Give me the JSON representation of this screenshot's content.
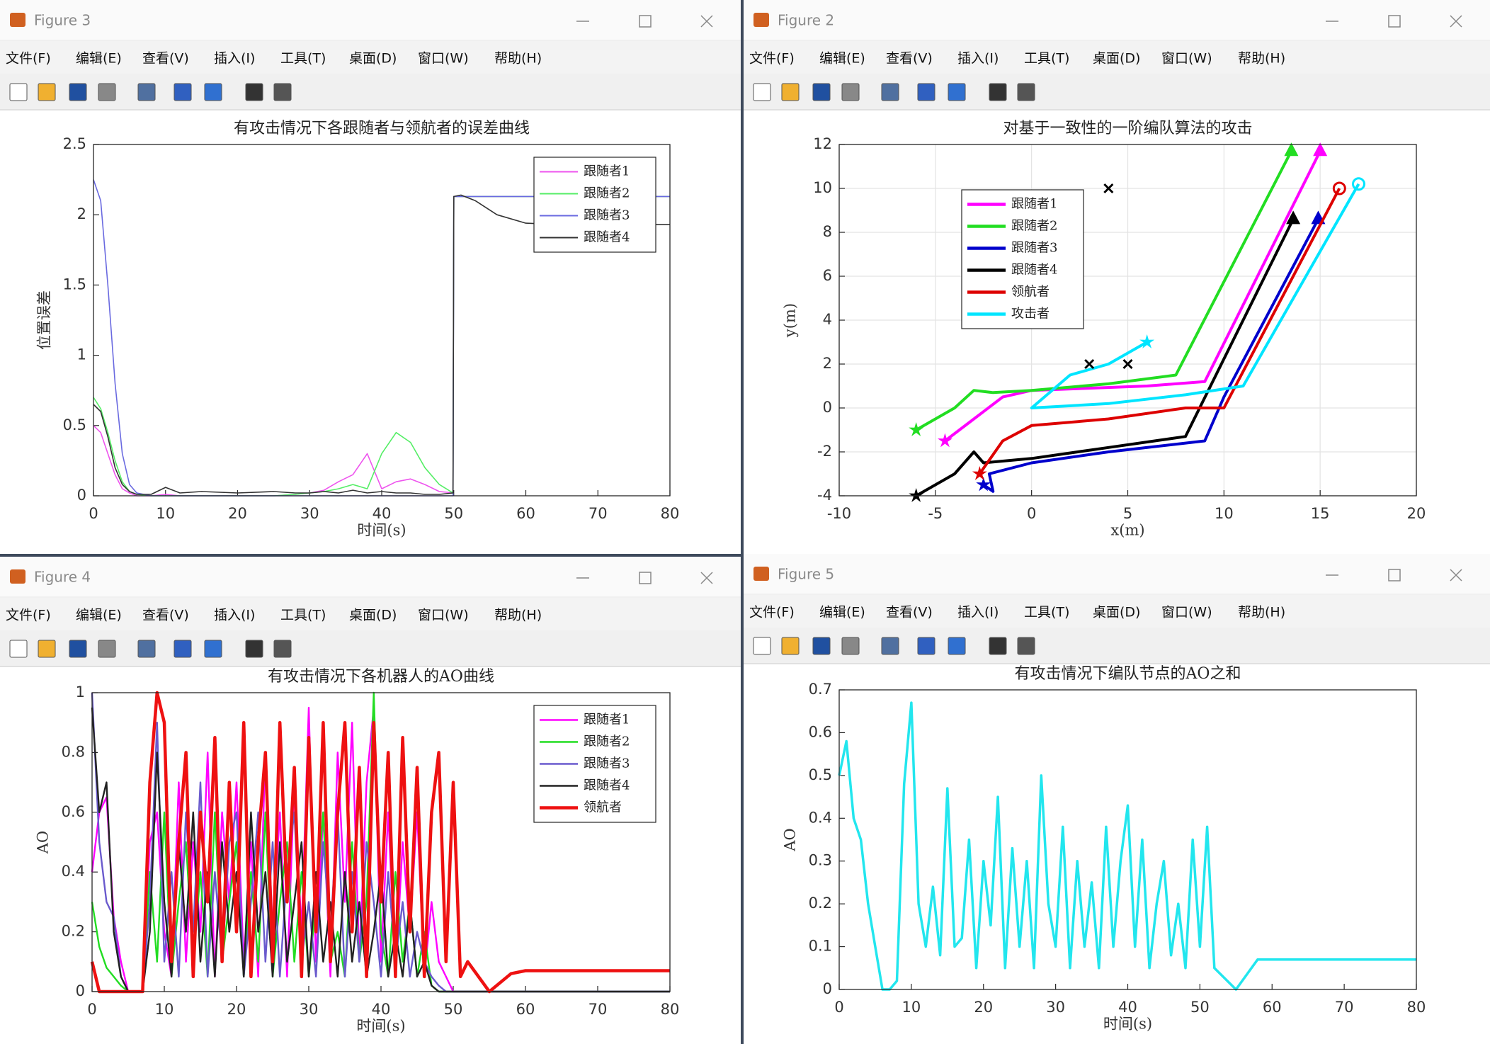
{
  "windows": [
    {
      "title": "Figure 3"
    },
    {
      "title": "Figure 2"
    },
    {
      "title": "Figure 4"
    },
    {
      "title": "Figure 5"
    }
  ],
  "menu": [
    "文件(F)",
    "编辑(E)",
    "查看(V)",
    "插入(I)",
    "工具(T)",
    "桌面(D)",
    "窗口(W)",
    "帮助(H)"
  ],
  "chart_data": [
    {
      "type": "line",
      "title": "有攻击情况下各跟随者与领航者的误差曲线",
      "xlabel": "时间(s)",
      "ylabel": "位置误差",
      "x": [
        0,
        1,
        2,
        3,
        4,
        5,
        6,
        8,
        10,
        12,
        15,
        20,
        25,
        28,
        30,
        32,
        34,
        36,
        38,
        40,
        42,
        44,
        46,
        48,
        49.9,
        50,
        51,
        53,
        56,
        60,
        65,
        70,
        80
      ],
      "series": [
        {
          "name": "跟随者1",
          "color": "#ee55ee",
          "values": [
            0.5,
            0.45,
            0.3,
            0.15,
            0.05,
            0.02,
            0,
            0,
            0.01,
            0,
            0,
            0,
            0,
            0.01,
            0.02,
            0.04,
            0.1,
            0.15,
            0.3,
            0.05,
            0.1,
            0.12,
            0.08,
            0.03,
            0.02,
            2.13,
            2.13,
            2.13,
            2.13,
            2.13,
            2.13,
            2.13,
            2.13
          ]
        },
        {
          "name": "跟随者2",
          "color": "#55ee66",
          "values": [
            0.7,
            0.62,
            0.45,
            0.25,
            0.1,
            0.03,
            0.01,
            0,
            0,
            0,
            0,
            0,
            0,
            0.01,
            0.02,
            0.03,
            0.05,
            0.08,
            0.05,
            0.3,
            0.45,
            0.38,
            0.2,
            0.08,
            0.02,
            2.13,
            2.13,
            2.13,
            2.13,
            2.13,
            2.13,
            2.13,
            2.13
          ]
        },
        {
          "name": "跟随者3",
          "color": "#6a6ae0",
          "values": [
            2.25,
            2.1,
            1.5,
            0.8,
            0.3,
            0.08,
            0.02,
            0,
            0,
            0,
            0,
            0,
            0,
            0,
            0,
            0,
            0,
            0,
            0,
            0,
            0,
            0,
            0,
            0,
            0,
            2.13,
            2.13,
            2.13,
            2.13,
            2.13,
            2.13,
            2.13,
            2.13
          ]
        },
        {
          "name": "跟随者4",
          "color": "#333333",
          "values": [
            0.65,
            0.6,
            0.42,
            0.2,
            0.08,
            0.03,
            0.01,
            0.01,
            0.06,
            0.02,
            0.03,
            0.02,
            0.03,
            0.02,
            0.02,
            0.03,
            0.02,
            0.04,
            0.02,
            0.03,
            0.02,
            0.02,
            0.01,
            0.01,
            0.02,
            2.13,
            2.14,
            2.1,
            2.0,
            1.94,
            1.93,
            1.93,
            1.93
          ]
        }
      ],
      "xlim": [
        0,
        80
      ],
      "xticks": [
        0,
        10,
        20,
        30,
        40,
        50,
        60,
        70,
        80
      ],
      "ylim": [
        0,
        2.5
      ],
      "yticks": [
        0,
        0.5,
        1,
        1.5,
        2,
        2.5
      ],
      "grid": false,
      "legend": "northeast"
    },
    {
      "type": "line",
      "title": "对基于一致性的一阶编队算法的攻击",
      "xlabel": "x(m)",
      "ylabel": "y(m)",
      "series": [
        {
          "name": "跟随者1",
          "color": "#ff00ff",
          "x": [
            -4.5,
            -3,
            -1.5,
            0,
            3,
            6,
            9,
            15
          ],
          "values": [
            -1.5,
            -0.5,
            0.5,
            0.8,
            0.9,
            1.0,
            1.2,
            11.7
          ],
          "start_marker": "star",
          "end_marker": "triangle"
        },
        {
          "name": "跟随者2",
          "color": "#22dd22",
          "x": [
            -6,
            -4,
            -3,
            -2,
            0,
            4,
            7.5,
            13.5
          ],
          "values": [
            -1,
            0,
            0.8,
            0.7,
            0.8,
            1.1,
            1.5,
            11.7
          ],
          "start_marker": "star",
          "end_marker": "triangle"
        },
        {
          "name": "跟随者3",
          "color": "#0000cc",
          "x": [
            -2.5,
            -2,
            -2.2,
            0,
            4,
            9,
            10,
            14.9
          ],
          "values": [
            -3.5,
            -3.8,
            -3,
            -2.5,
            -2,
            -1.5,
            0.5,
            8.6
          ],
          "start_marker": "star",
          "end_marker": "triangle"
        },
        {
          "name": "跟随者4",
          "color": "#000000",
          "x": [
            -6,
            -4,
            -3,
            -2.5,
            0,
            4,
            8,
            13.6
          ],
          "values": [
            -4,
            -3,
            -2,
            -2.5,
            -2.3,
            -1.8,
            -1.3,
            8.6
          ],
          "start_marker": "star",
          "end_marker": "triangle"
        },
        {
          "name": "领航者",
          "color": "#dd0000",
          "x": [
            -2.7,
            -1.5,
            0,
            4,
            8,
            10,
            16
          ],
          "values": [
            -3,
            -1.5,
            -0.8,
            -0.5,
            0,
            0,
            10
          ],
          "start_marker": "star",
          "end_marker": "circle"
        },
        {
          "name": "攻击者",
          "color": "#00e5ff",
          "x": [
            6,
            4,
            2,
            0,
            4,
            8,
            11,
            17
          ],
          "values": [
            3,
            2,
            1.5,
            0,
            0.2,
            0.6,
            1,
            10.2
          ],
          "start_marker": "star",
          "end_marker": "circle"
        }
      ],
      "points": {
        "x": [
          3,
          4,
          5
        ],
        "values": [
          2,
          10,
          2
        ],
        "color": "#000000"
      },
      "xlim": [
        -10,
        20
      ],
      "xticks": [
        -10,
        -5,
        0,
        5,
        10,
        15,
        20
      ],
      "ylim": [
        -4,
        12
      ],
      "yticks": [
        -4,
        -2,
        0,
        2,
        4,
        6,
        8,
        10,
        12
      ],
      "grid": true,
      "legend": "northwest"
    },
    {
      "type": "line",
      "title": "有攻击情况下各机器人的AO曲线",
      "xlabel": "时间(s)",
      "ylabel": "AO",
      "x": [
        0,
        1,
        2,
        3,
        4,
        5,
        6,
        7,
        8,
        9,
        10,
        11,
        12,
        13,
        14,
        15,
        16,
        17,
        18,
        19,
        20,
        21,
        22,
        23,
        24,
        25,
        26,
        27,
        28,
        29,
        30,
        31,
        32,
        33,
        34,
        35,
        36,
        37,
        38,
        39,
        40,
        41,
        42,
        43,
        44,
        45,
        46,
        47,
        48,
        49,
        50,
        51,
        52,
        55,
        58,
        60,
        70,
        80
      ],
      "series": [
        {
          "name": "跟随者1",
          "color": "#ff00ff",
          "values": [
            0.4,
            0.6,
            0.65,
            0.25,
            0.1,
            0,
            0,
            0,
            0.5,
            0.6,
            0.2,
            0.05,
            0.7,
            0.1,
            0.5,
            0.2,
            0.8,
            0.05,
            0.6,
            0.3,
            0.7,
            0.1,
            0.5,
            0.05,
            0.8,
            0.2,
            0.6,
            0.05,
            0.7,
            0.2,
            0.95,
            0.1,
            0.6,
            0.05,
            0.8,
            0.3,
            0.9,
            0.1,
            0.7,
            0.95,
            0.1,
            0.6,
            0.05,
            0.5,
            0.2,
            0.6,
            0.05,
            0.3,
            0.1,
            0.05,
            0,
            0,
            0,
            0,
            0,
            0,
            0,
            0
          ]
        },
        {
          "name": "跟随者2",
          "color": "#22dd22",
          "values": [
            0.3,
            0.15,
            0.08,
            0.05,
            0.02,
            0,
            0,
            0,
            0.4,
            0.1,
            0.6,
            0.05,
            0.3,
            0.5,
            0.1,
            0.4,
            0.05,
            0.6,
            0.1,
            0.3,
            0.5,
            0.05,
            0.4,
            0.1,
            0.6,
            0.05,
            0.3,
            0.5,
            0.1,
            0.4,
            0.05,
            0.3,
            0.6,
            0.1,
            0.2,
            0.05,
            0.5,
            0.1,
            0.3,
            1,
            0.2,
            0.05,
            0.4,
            0.1,
            0.3,
            0.05,
            0.2,
            0.02,
            0,
            0,
            0,
            0,
            0,
            0,
            0,
            0,
            0,
            0
          ]
        },
        {
          "name": "跟随者3",
          "color": "#6a5acd",
          "values": [
            1,
            0.5,
            0.3,
            0.25,
            0.05,
            0,
            0,
            0,
            0.3,
            0.9,
            0.1,
            0.4,
            0.05,
            0.6,
            0.2,
            0.7,
            0.05,
            0.4,
            0.1,
            0.5,
            0.6,
            0.05,
            0.3,
            0.6,
            0.1,
            0.5,
            0.05,
            0.4,
            0.6,
            0.1,
            0.3,
            0.05,
            0.5,
            0.2,
            0.6,
            0.05,
            0.4,
            0.1,
            0.5,
            0.3,
            0.05,
            0.4,
            0.1,
            0.3,
            0.05,
            0.2,
            0.1,
            0.05,
            0.02,
            0,
            0,
            0,
            0,
            0,
            0,
            0,
            0,
            0
          ]
        },
        {
          "name": "跟随者4",
          "color": "#222222",
          "values": [
            0.95,
            0.6,
            0.7,
            0.2,
            0.05,
            0,
            0,
            0,
            0.2,
            0.8,
            0.3,
            0.05,
            0.5,
            0.2,
            0.6,
            0.1,
            0.4,
            0.05,
            0.5,
            0.2,
            0.4,
            0.05,
            0.6,
            0.2,
            0.4,
            0.05,
            0.5,
            0.1,
            0.3,
            0.5,
            0.05,
            0.4,
            0.1,
            0.3,
            0.05,
            0.4,
            0.1,
            0.3,
            0.05,
            0.2,
            0.4,
            0.05,
            0.2,
            0.05,
            0.3,
            0.05,
            0.1,
            0.02,
            0,
            0,
            0,
            0,
            0,
            0,
            0,
            0,
            0,
            0
          ]
        },
        {
          "name": "领航者",
          "color": "#ee1111",
          "values": [
            0.1,
            0,
            0,
            0,
            0,
            0,
            0,
            0,
            0.7,
            1,
            0.9,
            0.1,
            0.5,
            0.8,
            0.05,
            0.6,
            0.3,
            0.85,
            0.1,
            0.7,
            0.2,
            0.9,
            0.05,
            0.5,
            0.8,
            0.1,
            0.9,
            0.3,
            0.75,
            0.05,
            0.85,
            0.2,
            0.9,
            0.1,
            0.6,
            0.9,
            0.2,
            0.75,
            0.05,
            0.9,
            0.3,
            0.8,
            0.05,
            0.85,
            0.2,
            0.75,
            0.05,
            0.6,
            0.8,
            0.1,
            0.7,
            0.05,
            0.1,
            0,
            0.06,
            0.07,
            0.07,
            0.07
          ]
        }
      ],
      "xlim": [
        0,
        80
      ],
      "xticks": [
        0,
        10,
        20,
        30,
        40,
        50,
        60,
        70,
        80
      ],
      "ylim": [
        0,
        1
      ],
      "yticks": [
        0,
        0.2,
        0.4,
        0.6,
        0.8,
        1
      ],
      "grid": false,
      "legend": "northeast"
    },
    {
      "type": "line",
      "title": "有攻击情况下编队节点的AO之和",
      "xlabel": "时间(s)",
      "ylabel": "AO",
      "x": [
        0,
        1,
        2,
        3,
        4,
        5,
        6,
        7,
        8,
        9,
        10,
        11,
        12,
        13,
        14,
        15,
        16,
        17,
        18,
        19,
        20,
        21,
        22,
        23,
        24,
        25,
        26,
        27,
        28,
        29,
        30,
        31,
        32,
        33,
        34,
        35,
        36,
        37,
        38,
        39,
        40,
        41,
        42,
        43,
        44,
        45,
        46,
        47,
        48,
        49,
        50,
        51,
        52,
        55,
        58,
        60,
        70,
        80
      ],
      "color": "#22e6ee",
      "values": [
        0.5,
        0.58,
        0.4,
        0.35,
        0.2,
        0.1,
        0,
        0,
        0.02,
        0.48,
        0.67,
        0.2,
        0.1,
        0.24,
        0.08,
        0.47,
        0.1,
        0.12,
        0.35,
        0.05,
        0.3,
        0.15,
        0.45,
        0.05,
        0.33,
        0.1,
        0.3,
        0.05,
        0.5,
        0.2,
        0.1,
        0.38,
        0.05,
        0.3,
        0.1,
        0.25,
        0.05,
        0.38,
        0.1,
        0.3,
        0.43,
        0.1,
        0.35,
        0.05,
        0.2,
        0.3,
        0.08,
        0.2,
        0.05,
        0.35,
        0.1,
        0.38,
        0.05,
        0,
        0.07,
        0.07,
        0.07,
        0.07
      ],
      "xlim": [
        0,
        80
      ],
      "xticks": [
        0,
        10,
        20,
        30,
        40,
        50,
        60,
        70,
        80
      ],
      "ylim": [
        0,
        0.7
      ],
      "yticks": [
        0,
        0.1,
        0.2,
        0.3,
        0.4,
        0.5,
        0.6,
        0.7
      ],
      "grid": false
    }
  ]
}
